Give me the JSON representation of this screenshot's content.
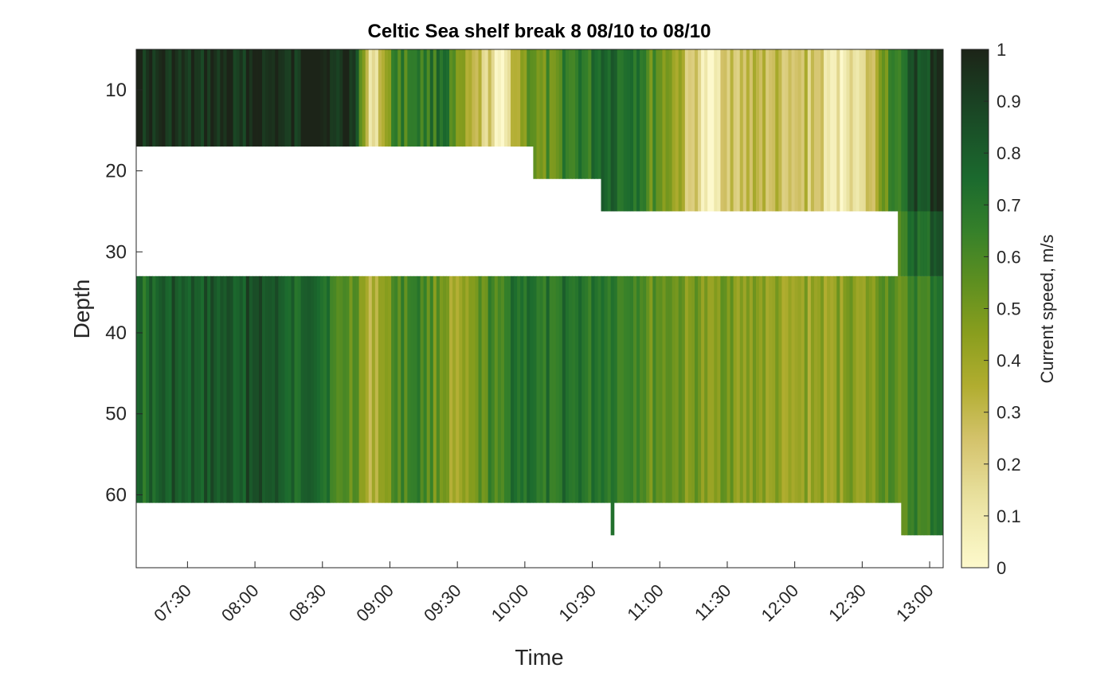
{
  "chart_data": {
    "type": "heatmap",
    "title": "Celtic Sea shelf break 8 08/10 to 08/10",
    "xlabel": "Time",
    "ylabel": "Depth",
    "colorbar_label": "Current speed, m/s",
    "x_range_hours": [
      7.12,
      13.1
    ],
    "y_range_depth": [
      5,
      69
    ],
    "y_reversed": true,
    "x_ticks": [
      {
        "label": "07:30",
        "hour": 7.5
      },
      {
        "label": "08:00",
        "hour": 8.0
      },
      {
        "label": "08:30",
        "hour": 8.5
      },
      {
        "label": "09:00",
        "hour": 9.0
      },
      {
        "label": "09:30",
        "hour": 9.5
      },
      {
        "label": "10:00",
        "hour": 10.0
      },
      {
        "label": "10:30",
        "hour": 10.5
      },
      {
        "label": "11:00",
        "hour": 11.0
      },
      {
        "label": "11:30",
        "hour": 11.5
      },
      {
        "label": "12:00",
        "hour": 12.0
      },
      {
        "label": "12:30",
        "hour": 12.5
      },
      {
        "label": "13:00",
        "hour": 13.0
      }
    ],
    "y_ticks": [
      10,
      20,
      30,
      40,
      50,
      60
    ],
    "colorbar_ticks": [
      "0",
      "0.1",
      "0.2",
      "0.3",
      "0.4",
      "0.5",
      "0.6",
      "0.7",
      "0.8",
      "0.9",
      "1"
    ],
    "color_limits": [
      0,
      1
    ],
    "colormap_stops": [
      {
        "v": 0.0,
        "color": "#fdf9cc"
      },
      {
        "v": 0.12,
        "color": "#ece5a6"
      },
      {
        "v": 0.25,
        "color": "#d3c26a"
      },
      {
        "v": 0.35,
        "color": "#b1ad30"
      },
      {
        "v": 0.45,
        "color": "#8a9e1e"
      },
      {
        "v": 0.55,
        "color": "#5e8f20"
      },
      {
        "v": 0.65,
        "color": "#35802a"
      },
      {
        "v": 0.75,
        "color": "#1b6a2e"
      },
      {
        "v": 0.87,
        "color": "#1a4a26"
      },
      {
        "v": 1.0,
        "color": "#1c2418"
      }
    ],
    "surface_layer": {
      "depth_range": [
        5,
        17
      ],
      "speed_profile": [
        {
          "hour": 7.12,
          "speed": 0.98
        },
        {
          "hour": 8.7,
          "speed": 0.97
        },
        {
          "hour": 8.87,
          "speed": 0.05
        },
        {
          "hour": 9.0,
          "speed": 0.6
        },
        {
          "hour": 9.4,
          "speed": 0.7
        },
        {
          "hour": 9.65,
          "speed": 0.3
        },
        {
          "hour": 9.82,
          "speed": 0.05
        },
        {
          "hour": 10.0,
          "speed": 0.5
        },
        {
          "hour": 10.35,
          "speed": 0.65
        },
        {
          "hour": 10.6,
          "speed": 0.75
        },
        {
          "hour": 10.85,
          "speed": 0.65
        },
        {
          "hour": 11.15,
          "speed": 0.35
        },
        {
          "hour": 11.35,
          "speed": 0.05
        },
        {
          "hour": 11.6,
          "speed": 0.3
        },
        {
          "hour": 11.9,
          "speed": 0.3
        },
        {
          "hour": 12.15,
          "speed": 0.25
        },
        {
          "hour": 12.35,
          "speed": 0.02
        },
        {
          "hour": 12.6,
          "speed": 0.35
        },
        {
          "hour": 12.8,
          "speed": 0.8
        },
        {
          "hour": 13.1,
          "speed": 0.95
        }
      ]
    },
    "bottom_layer": {
      "depth_range": [
        33,
        61
      ],
      "speed_profile": [
        {
          "hour": 7.12,
          "speed": 0.7
        },
        {
          "hour": 7.3,
          "speed": 0.82
        },
        {
          "hour": 8.1,
          "speed": 0.84
        },
        {
          "hour": 8.5,
          "speed": 0.7
        },
        {
          "hour": 8.75,
          "speed": 0.5
        },
        {
          "hour": 8.88,
          "speed": 0.3
        },
        {
          "hour": 9.0,
          "speed": 0.55
        },
        {
          "hour": 9.2,
          "speed": 0.65
        },
        {
          "hour": 9.45,
          "speed": 0.4
        },
        {
          "hour": 9.65,
          "speed": 0.55
        },
        {
          "hour": 9.9,
          "speed": 0.7
        },
        {
          "hour": 10.2,
          "speed": 0.72
        },
        {
          "hour": 10.5,
          "speed": 0.7
        },
        {
          "hour": 10.9,
          "speed": 0.55
        },
        {
          "hour": 11.3,
          "speed": 0.48
        },
        {
          "hour": 11.7,
          "speed": 0.45
        },
        {
          "hour": 12.1,
          "speed": 0.42
        },
        {
          "hour": 12.5,
          "speed": 0.45
        },
        {
          "hour": 12.8,
          "speed": 0.6
        },
        {
          "hour": 13.1,
          "speed": 0.7
        }
      ]
    },
    "valid_data_bounds": [
      {
        "from_hour": 7.12,
        "to_hour": 10.05,
        "max_depth_top": 17
      },
      {
        "from_hour": 10.05,
        "to_hour": 10.55,
        "max_depth_top": 21
      },
      {
        "from_hour": 10.55,
        "to_hour": 12.75,
        "max_depth_top": 25
      },
      {
        "from_hour": 12.75,
        "to_hour": 13.1,
        "max_depth_top": 61
      }
    ],
    "bottom_extension": [
      {
        "from_hour": 10.62,
        "to_hour": 10.66,
        "max_depth": 65
      },
      {
        "from_hour": 12.77,
        "to_hour": 13.1,
        "max_depth": 65
      }
    ]
  }
}
